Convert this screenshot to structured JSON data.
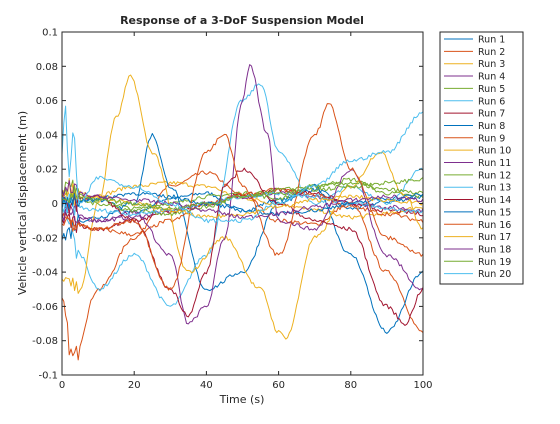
{
  "chart_data": {
    "type": "line",
    "title": "Response of a 3-DoF Suspension Model",
    "xlabel": "Time (s)",
    "ylabel": "Vehicle vertical displacement (m)",
    "xlim": [
      0,
      100
    ],
    "ylim": [
      -0.1,
      0.1
    ],
    "x_ticks": [
      0,
      20,
      40,
      60,
      80,
      100
    ],
    "y_ticks": [
      -0.1,
      -0.08,
      -0.06,
      -0.04,
      -0.02,
      0,
      0.02,
      0.04,
      0.06,
      0.08,
      0.1
    ],
    "x_tick_labels": [
      "0",
      "20",
      "40",
      "60",
      "80",
      "100"
    ],
    "y_tick_labels": [
      "-0.1",
      "-0.08",
      "-0.06",
      "-0.04",
      "-0.02",
      "0",
      "0.02",
      "0.04",
      "0.06",
      "0.08",
      "0.1"
    ],
    "grid": false,
    "legend_position": "outside-right",
    "series": [
      {
        "name": "Run 1",
        "color": "#0072BD",
        "x": [
          0,
          10,
          20,
          30,
          40,
          50,
          60,
          70,
          80,
          90,
          100
        ],
        "y": [
          0.0,
          0.002,
          -0.005,
          0.003,
          0.006,
          -0.004,
          0.002,
          0.008,
          -0.003,
          0.001,
          0.004
        ]
      },
      {
        "name": "Run 2",
        "color": "#D95319",
        "x": [
          0,
          3,
          10,
          20,
          30,
          40,
          50,
          60,
          70,
          80,
          90,
          100
        ],
        "y": [
          -0.06,
          -0.09,
          -0.05,
          -0.02,
          0.01,
          0.018,
          0.005,
          -0.01,
          -0.012,
          0.0,
          -0.04,
          -0.075
        ]
      },
      {
        "name": "Run 3",
        "color": "#EDB120",
        "x": [
          0,
          10,
          20,
          30,
          40,
          50,
          60,
          70,
          80,
          90,
          100
        ],
        "y": [
          0.002,
          0.005,
          0.01,
          0.012,
          0.01,
          0.003,
          0.0,
          -0.004,
          -0.008,
          -0.006,
          -0.002
        ]
      },
      {
        "name": "Run 4",
        "color": "#7E2F8E",
        "x": [
          0,
          10,
          20,
          30,
          40,
          50,
          60,
          70,
          80,
          90,
          100
        ],
        "y": [
          -0.005,
          -0.01,
          -0.008,
          -0.004,
          0.0,
          0.004,
          0.006,
          0.004,
          0.0,
          -0.002,
          -0.004
        ]
      },
      {
        "name": "Run 5",
        "color": "#77AC30",
        "x": [
          0,
          10,
          20,
          30,
          40,
          50,
          60,
          70,
          80,
          90,
          100
        ],
        "y": [
          0.01,
          0.002,
          -0.003,
          0.0,
          0.004,
          0.006,
          0.003,
          0.01,
          0.014,
          0.006,
          0.004
        ]
      },
      {
        "name": "Run 6",
        "color": "#4DBEEE",
        "x": [
          0,
          5,
          10,
          20,
          30,
          40,
          50,
          55,
          60,
          70,
          80,
          90,
          100
        ],
        "y": [
          0.0,
          -0.03,
          -0.05,
          -0.03,
          -0.06,
          -0.03,
          0.06,
          0.07,
          0.03,
          0.0,
          0.01,
          0.0,
          0.02
        ]
      },
      {
        "name": "Run 7",
        "color": "#A2142F",
        "x": [
          0,
          10,
          20,
          30,
          40,
          50,
          60,
          70,
          80,
          90,
          100
        ],
        "y": [
          -0.01,
          -0.015,
          -0.01,
          -0.005,
          0.0,
          0.005,
          0.008,
          0.006,
          0.0,
          -0.004,
          -0.006
        ]
      },
      {
        "name": "Run 8",
        "color": "#0072BD",
        "x": [
          0,
          5,
          10,
          20,
          25,
          30,
          40,
          50,
          60,
          70,
          80,
          90,
          100
        ],
        "y": [
          -0.02,
          -0.01,
          -0.008,
          0.0,
          0.04,
          0.01,
          -0.05,
          -0.04,
          0.0,
          0.01,
          -0.03,
          -0.075,
          -0.04
        ]
      },
      {
        "name": "Run 9",
        "color": "#D95319",
        "x": [
          0,
          10,
          20,
          30,
          40,
          50,
          60,
          70,
          80,
          90,
          100
        ],
        "y": [
          -0.01,
          -0.015,
          -0.018,
          -0.01,
          0.0,
          0.005,
          0.008,
          0.005,
          -0.002,
          -0.006,
          -0.01
        ]
      },
      {
        "name": "Run 10",
        "color": "#EDB120",
        "x": [
          0,
          5,
          10,
          15,
          19,
          25,
          35,
          45,
          55,
          60,
          62,
          70,
          80,
          88,
          95,
          100
        ],
        "y": [
          -0.04,
          -0.05,
          0.0,
          0.05,
          0.074,
          0.03,
          -0.04,
          -0.02,
          -0.05,
          -0.075,
          -0.078,
          -0.02,
          0.01,
          0.03,
          0.005,
          -0.015
        ]
      },
      {
        "name": "Run 11",
        "color": "#7E2F8E",
        "x": [
          0,
          10,
          20,
          30,
          35,
          40,
          45,
          50,
          52,
          57,
          60,
          70,
          80,
          90,
          100
        ],
        "y": [
          -0.005,
          -0.01,
          -0.005,
          -0.03,
          -0.07,
          -0.06,
          -0.02,
          0.06,
          0.08,
          0.04,
          -0.01,
          -0.015,
          0.02,
          -0.03,
          -0.05
        ]
      },
      {
        "name": "Run 12",
        "color": "#77AC30",
        "x": [
          0,
          10,
          20,
          30,
          40,
          50,
          60,
          70,
          80,
          90,
          100
        ],
        "y": [
          0.005,
          0.0,
          -0.004,
          -0.006,
          -0.002,
          0.004,
          0.008,
          0.01,
          0.012,
          0.008,
          0.006
        ]
      },
      {
        "name": "Run 13",
        "color": "#4DBEEE",
        "x": [
          0,
          10,
          20,
          30,
          40,
          50,
          60,
          70,
          80,
          90,
          100
        ],
        "y": [
          0.0,
          -0.004,
          -0.006,
          -0.004,
          0.0,
          0.004,
          0.006,
          0.004,
          0.0,
          -0.003,
          -0.005
        ]
      },
      {
        "name": "Run 14",
        "color": "#A2142F",
        "x": [
          0,
          10,
          20,
          30,
          35,
          40,
          45,
          50,
          60,
          70,
          80,
          90,
          95,
          100
        ],
        "y": [
          0.0,
          0.004,
          -0.01,
          -0.05,
          -0.065,
          -0.04,
          0.01,
          0.02,
          0.0,
          -0.01,
          -0.015,
          -0.06,
          -0.07,
          -0.05
        ]
      },
      {
        "name": "Run 15",
        "color": "#0072BD",
        "x": [
          0,
          10,
          20,
          30,
          40,
          50,
          60,
          70,
          80,
          90,
          100
        ],
        "y": [
          0.0,
          0.003,
          0.006,
          0.004,
          0.0,
          -0.004,
          -0.006,
          -0.004,
          0.0,
          0.003,
          0.005
        ]
      },
      {
        "name": "Run 16",
        "color": "#D95319",
        "x": [
          0,
          10,
          20,
          30,
          40,
          45,
          50,
          60,
          70,
          74,
          80,
          90,
          100
        ],
        "y": [
          -0.01,
          -0.015,
          -0.01,
          -0.05,
          0.03,
          0.04,
          0.01,
          -0.03,
          0.04,
          0.058,
          0.02,
          -0.02,
          -0.03
        ]
      },
      {
        "name": "Run 17",
        "color": "#EDB120",
        "x": [
          0,
          10,
          20,
          30,
          40,
          50,
          60,
          70,
          80,
          90,
          100
        ],
        "y": [
          0.01,
          0.004,
          0.0,
          -0.004,
          -0.008,
          -0.006,
          -0.002,
          0.002,
          0.004,
          0.002,
          0.0
        ]
      },
      {
        "name": "Run 18",
        "color": "#7E2F8E",
        "x": [
          0,
          10,
          20,
          30,
          40,
          50,
          60,
          70,
          80,
          90,
          100
        ],
        "y": [
          0.008,
          0.004,
          0.002,
          0.0,
          -0.004,
          -0.008,
          -0.006,
          -0.002,
          0.002,
          0.004,
          0.002
        ]
      },
      {
        "name": "Run 19",
        "color": "#77AC30",
        "x": [
          0,
          10,
          20,
          30,
          40,
          50,
          60,
          70,
          80,
          90,
          100
        ],
        "y": [
          0.006,
          0.002,
          0.0,
          -0.003,
          0.0,
          0.004,
          0.006,
          0.008,
          0.01,
          0.012,
          0.014
        ]
      },
      {
        "name": "Run 20",
        "color": "#4DBEEE",
        "x": [
          0,
          1,
          2,
          3,
          5,
          10,
          20,
          30,
          40,
          50,
          60,
          70,
          80,
          90,
          100
        ],
        "y": [
          0.03,
          0.06,
          0.01,
          0.04,
          0.0,
          0.015,
          0.01,
          0.0,
          -0.01,
          -0.01,
          0.0,
          0.01,
          0.025,
          0.03,
          0.053
        ]
      }
    ]
  }
}
